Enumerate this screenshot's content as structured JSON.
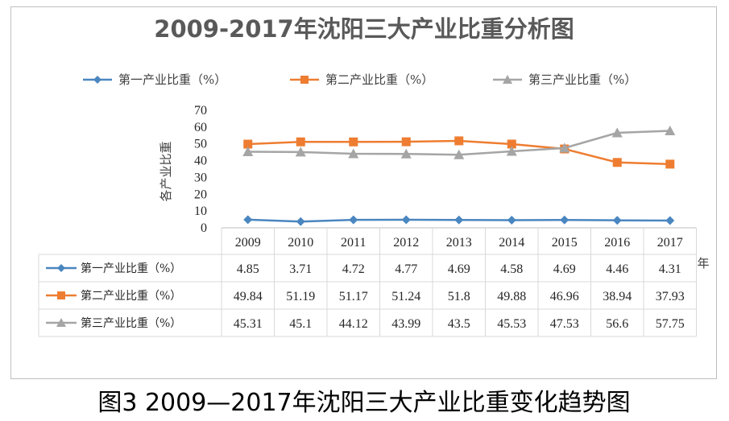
{
  "caption": "图3 2009—2017年沈阳三大产业比重变化趋势图",
  "chart_data": {
    "type": "line",
    "title": "2009-2017年沈阳三大产业比重分析图",
    "ylabel": "各产业比重",
    "xlabel": "年",
    "ylim": [
      0,
      70
    ],
    "yticks": [
      "0",
      "10",
      "20",
      "30",
      "40",
      "50",
      "60",
      "70"
    ],
    "categories": [
      "2009",
      "2010",
      "2011",
      "2012",
      "2013",
      "2014",
      "2015",
      "2016",
      "2017"
    ],
    "legend_position": "top",
    "grid": false,
    "data_table": true,
    "series": [
      {
        "name": "第一产业比重（%）",
        "color": "#4a86c0",
        "marker": "diamond",
        "values": [
          4.85,
          3.71,
          4.72,
          4.77,
          4.69,
          4.58,
          4.69,
          4.46,
          4.31
        ],
        "labels": [
          "4.85",
          "3.71",
          "4.72",
          "4.77",
          "4.69",
          "4.58",
          "4.69",
          "4.46",
          "4.31"
        ]
      },
      {
        "name": "第二产业比重（%）",
        "color": "#ee7d31",
        "marker": "square",
        "values": [
          49.84,
          51.19,
          51.17,
          51.24,
          51.8,
          49.88,
          46.96,
          38.94,
          37.93
        ],
        "labels": [
          "49.84",
          "51.19",
          "51.17",
          "51.24",
          "51.8",
          "49.88",
          "46.96",
          "38.94",
          "37.93"
        ]
      },
      {
        "name": "第三产业比重（%）",
        "color": "#a5a5a5",
        "marker": "triangle",
        "values": [
          45.31,
          45.1,
          44.12,
          43.99,
          43.5,
          45.53,
          47.53,
          56.6,
          57.75
        ],
        "labels": [
          "45.31",
          "45.1",
          "44.12",
          "43.99",
          "43.5",
          "45.53",
          "47.53",
          "56.6",
          "57.75"
        ]
      }
    ]
  }
}
